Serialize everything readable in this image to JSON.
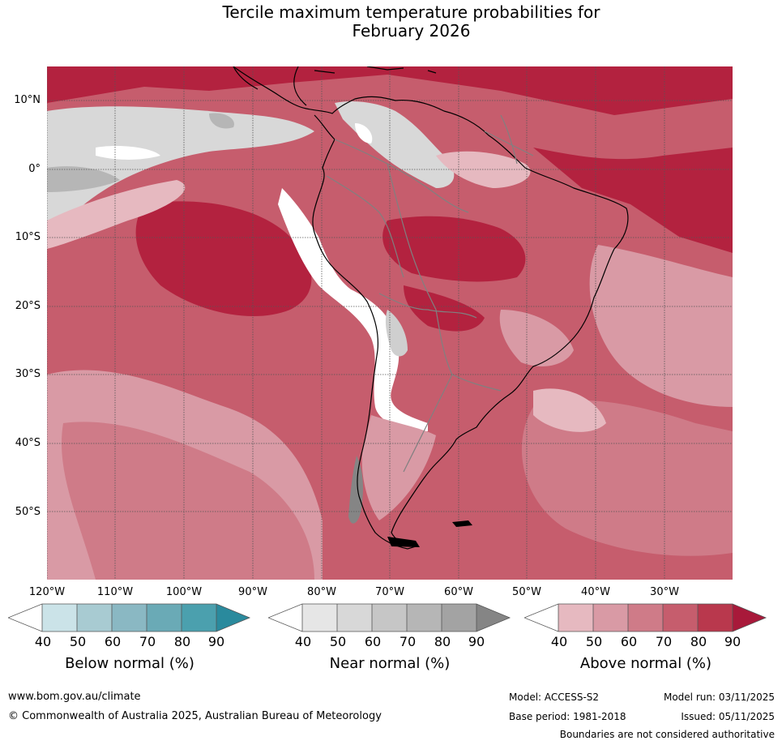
{
  "title_line1": "Tercile maximum temperature probabilities for",
  "title_line2": "February 2026",
  "latitude_labels": [
    "10°N",
    "0°",
    "10°S",
    "20°S",
    "30°S",
    "40°S",
    "50°S"
  ],
  "longitude_labels": [
    "120°W",
    "110°W",
    "100°W",
    "90°W",
    "80°W",
    "70°W",
    "60°W",
    "50°W",
    "40°W",
    "30°W"
  ],
  "legends": [
    {
      "caption": "Below normal (%)",
      "ticks": [
        "40",
        "50",
        "60",
        "70",
        "80",
        "90"
      ],
      "colors": [
        "#ffffff",
        "#cbe3e8",
        "#a8cbd2",
        "#8ab8c3",
        "#6aaab6",
        "#4ba0ae",
        "#2a8a9d"
      ]
    },
    {
      "caption": "Near normal (%)",
      "ticks": [
        "40",
        "50",
        "60",
        "70",
        "80",
        "90"
      ],
      "colors": [
        "#ffffff",
        "#e6e6e6",
        "#d8d8d8",
        "#c6c6c6",
        "#b6b6b6",
        "#a3a3a3",
        "#858585"
      ]
    },
    {
      "caption": "Above normal (%)",
      "ticks": [
        "40",
        "50",
        "60",
        "70",
        "80",
        "90"
      ],
      "colors": [
        "#ffffff",
        "#e6b9c0",
        "#d99aa5",
        "#cf7b88",
        "#c65d6d",
        "#b9384d",
        "#a8193a"
      ]
    }
  ],
  "footer": {
    "url": "www.bom.gov.au/climate",
    "copyright": "© Commonwealth of Australia 2025, Australian Bureau of Meteorology",
    "model": "Model: ACCESS-S2",
    "model_run": "Model run: 03/11/2025",
    "base_period": "Base period: 1981-2018",
    "issued": "Issued: 05/11/2025",
    "disclaimer": "Boundaries are not considered authoritative"
  },
  "colors": {
    "above_70": "#cf7b88",
    "above_80": "#c65d6d",
    "above_90": "#b3223f",
    "above_60": "#d99aa5",
    "above_50": "#e6b9c0",
    "near_50": "#e6e6e6",
    "near_60": "#cfcfcf",
    "near_70": "#b6b6b6",
    "coastline": "#000000",
    "borders": "#808080"
  }
}
